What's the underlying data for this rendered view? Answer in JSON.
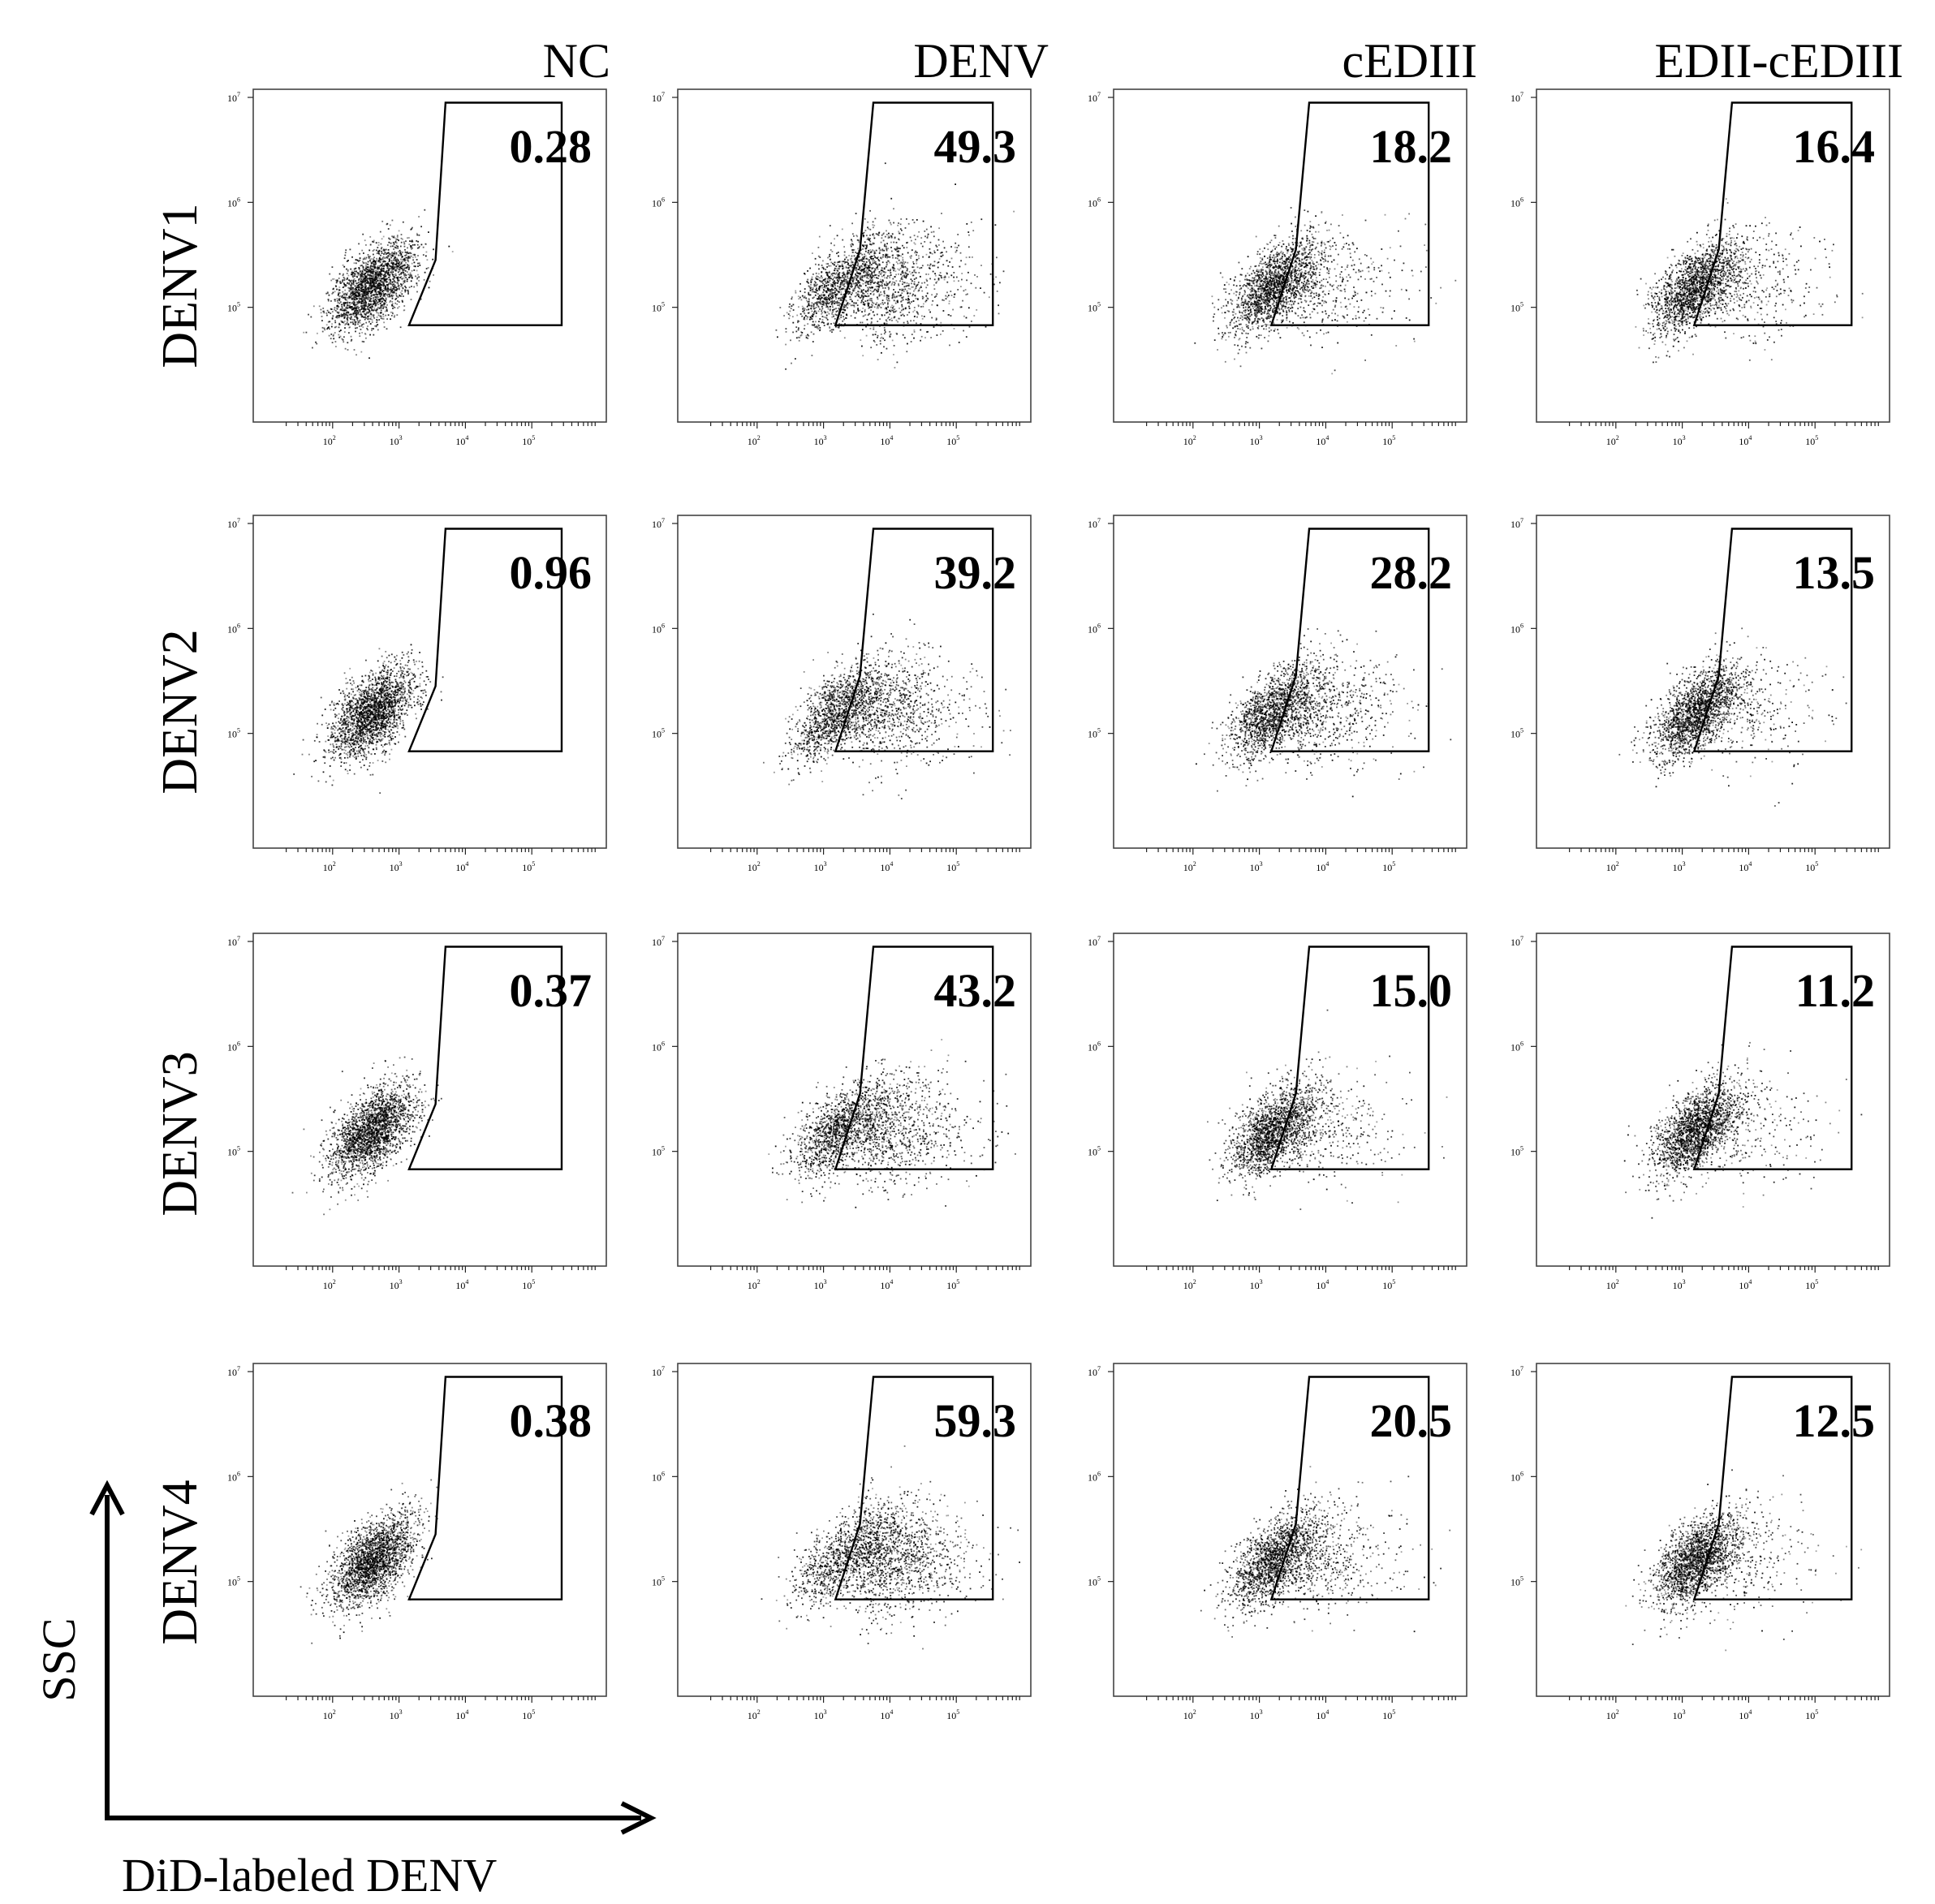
{
  "chart_data": {
    "type": "scatter",
    "description_kind": "flow cytometry dot plot grid",
    "columns": [
      "NC",
      "DENV",
      "cEDIII",
      "EDII-cEDIII"
    ],
    "rows": [
      "DENV1",
      "DENV2",
      "DENV3",
      "DENV4"
    ],
    "gate_percentages": [
      [
        "0.28",
        "49.3",
        "18.2",
        "16.4"
      ],
      [
        "0.96",
        "39.2",
        "28.2",
        "13.5"
      ],
      [
        "0.37",
        "43.2",
        "15.0",
        "11.2"
      ],
      [
        "0.38",
        "59.3",
        "20.5",
        "12.5"
      ]
    ],
    "x_axis": {
      "label": "DiD-labeled DENV",
      "scale": "log",
      "range": [
        10,
        1000000
      ],
      "tick_exponents": [
        "2",
        "3",
        "4",
        "5"
      ]
    },
    "y_axis": {
      "label": "SSC",
      "scale": "log",
      "range": [
        10000,
        10000000
      ],
      "tick_exponents": [
        "5",
        "6",
        "7"
      ]
    },
    "tick_base": "10",
    "point_color": "#000000"
  }
}
